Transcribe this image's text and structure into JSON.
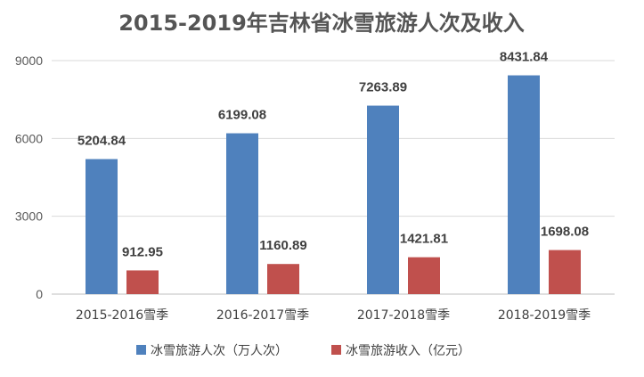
{
  "chart_data": {
    "type": "bar",
    "title": "2015-2019年吉林省冰雪旅游人次及收入",
    "xlabel": "",
    "ylabel": "",
    "categories": [
      "2015-2016雪季",
      "2016-2017雪季",
      "2017-2018雪季",
      "2018-2019雪季"
    ],
    "series": [
      {
        "name": "冰雪旅游人次（万人次）",
        "values": [
          5204.84,
          6199.08,
          7263.89,
          8431.84
        ],
        "labels": [
          "5204.84",
          "6199.08",
          "7263.89",
          "8431.84"
        ],
        "color": "#4F81BD"
      },
      {
        "name": "冰雪旅游收入（亿元）",
        "values": [
          912.95,
          1160.89,
          1421.81,
          1698.08
        ],
        "labels": [
          "912.95",
          "1160.89",
          "1421.81",
          "1698.08"
        ],
        "color": "#C0504D"
      }
    ],
    "ylim": [
      0,
      9000
    ],
    "yticks": [
      0,
      3000,
      6000,
      9000
    ],
    "ytick_labels": [
      "0",
      "3000",
      "6000",
      "9000"
    ],
    "grid": true,
    "legend": "bottom"
  }
}
